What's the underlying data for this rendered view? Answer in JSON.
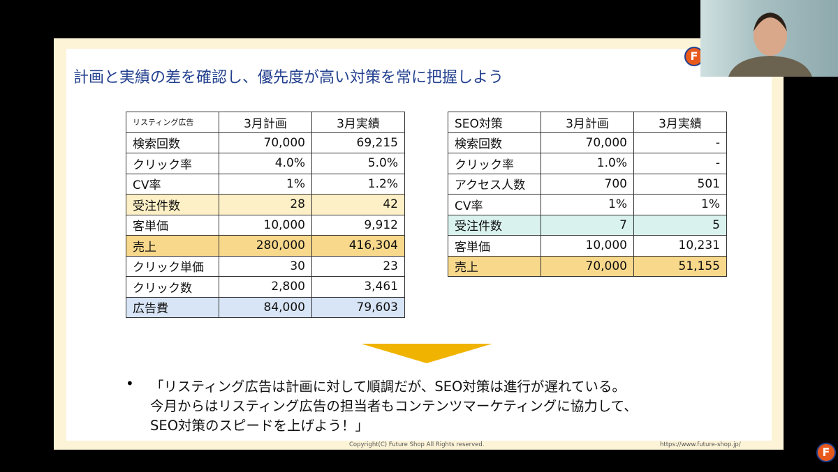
{
  "slide": {
    "title": "計画と実績の差を確認し、優先度が高い対策を常に把握しよう",
    "tables": [
      {
        "header": [
          "リスティング広告",
          "3月計画",
          "3月実績"
        ],
        "rows": [
          [
            "検索回数",
            "70,000",
            "69,215"
          ],
          [
            "クリック率",
            "4.0%",
            "5.0%"
          ],
          [
            "CV率",
            "1%",
            "1.2%"
          ],
          [
            "受注件数",
            "28",
            "42"
          ],
          [
            "客単価",
            "10,000",
            "9,912"
          ],
          [
            "売上",
            "280,000",
            "416,304"
          ],
          [
            "クリック単価",
            "30",
            "23"
          ],
          [
            "クリック数",
            "2,800",
            "3,461"
          ],
          [
            "広告費",
            "84,000",
            "79,603"
          ]
        ]
      },
      {
        "header": [
          "SEO対策",
          "3月計画",
          "3月実績"
        ],
        "rows": [
          [
            "検索回数",
            "70,000",
            "-"
          ],
          [
            "クリック率",
            "1.0%",
            "-"
          ],
          [
            "アクセス人数",
            "700",
            "501"
          ],
          [
            "CV率",
            "1%",
            "1%"
          ],
          [
            "受注件数",
            "7",
            "5"
          ],
          [
            "客単価",
            "10,000",
            "10,231"
          ],
          [
            "売上",
            "70,000",
            "51,155"
          ]
        ]
      }
    ],
    "bullet": [
      "「リスティング広告は計画に対して順調だが、SEO対策は進行が遅れている。",
      "今月からはリスティング広告の担当者もコンテンツマーケティングに協力して、",
      "SEO対策のスピードを上げよう！」"
    ],
    "footer": {
      "copyright": "Copyright(C) Future Shop All Rights reserved.",
      "url": "https://www.future-shop.jp/"
    },
    "logo": "F"
  }
}
